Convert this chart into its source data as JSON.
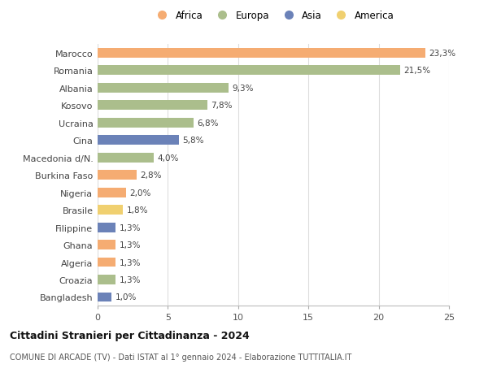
{
  "categories": [
    "Marocco",
    "Romania",
    "Albania",
    "Kosovo",
    "Ucraina",
    "Cina",
    "Macedonia d/N.",
    "Burkina Faso",
    "Nigeria",
    "Brasile",
    "Filippine",
    "Ghana",
    "Algeria",
    "Croazia",
    "Bangladesh"
  ],
  "values": [
    23.3,
    21.5,
    9.3,
    7.8,
    6.8,
    5.8,
    4.0,
    2.8,
    2.0,
    1.8,
    1.3,
    1.3,
    1.3,
    1.3,
    1.0
  ],
  "labels": [
    "23,3%",
    "21,5%",
    "9,3%",
    "7,8%",
    "6,8%",
    "5,8%",
    "4,0%",
    "2,8%",
    "2,0%",
    "1,8%",
    "1,3%",
    "1,3%",
    "1,3%",
    "1,3%",
    "1,0%"
  ],
  "colors": [
    "#F5AC72",
    "#ABBE8C",
    "#ABBE8C",
    "#ABBE8C",
    "#ABBE8C",
    "#6B82B8",
    "#ABBE8C",
    "#F5AC72",
    "#F5AC72",
    "#F0D070",
    "#6B82B8",
    "#F5AC72",
    "#F5AC72",
    "#ABBE8C",
    "#6B82B8"
  ],
  "legend_labels": [
    "Africa",
    "Europa",
    "Asia",
    "America"
  ],
  "legend_colors": [
    "#F5AC72",
    "#ABBE8C",
    "#6B82B8",
    "#F0D070"
  ],
  "title": "Cittadini Stranieri per Cittadinanza - 2024",
  "subtitle": "COMUNE DI ARCADE (TV) - Dati ISTAT al 1° gennaio 2024 - Elaborazione TUTTITALIA.IT",
  "xlim": [
    0,
    25
  ],
  "xticks": [
    0,
    5,
    10,
    15,
    20,
    25
  ],
  "background_color": "#ffffff",
  "grid_color": "#dddddd",
  "bar_height": 0.55
}
